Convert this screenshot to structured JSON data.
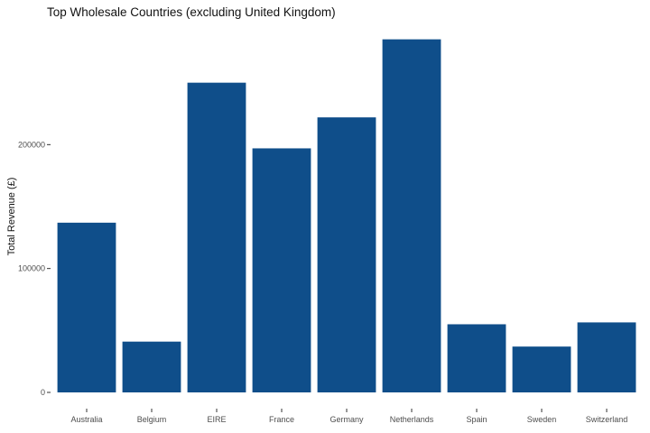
{
  "chart_data": {
    "type": "bar",
    "title": "Top Wholesale Countries (excluding United Kingdom)",
    "xlabel": "",
    "ylabel": "Total Revenue (£)",
    "categories": [
      "Australia",
      "Belgium",
      "EIRE",
      "France",
      "Germany",
      "Netherlands",
      "Spain",
      "Sweden",
      "Switzerland"
    ],
    "values": [
      137000,
      41000,
      250000,
      197000,
      222000,
      285000,
      55000,
      37000,
      56500
    ],
    "ylim": [
      0,
      300000
    ],
    "yticks": [
      0,
      100000,
      200000
    ],
    "ytick_labels": [
      "0",
      "100000",
      "200000"
    ],
    "bar_color": "#0f4e8a",
    "grid": false,
    "legend": "none"
  }
}
